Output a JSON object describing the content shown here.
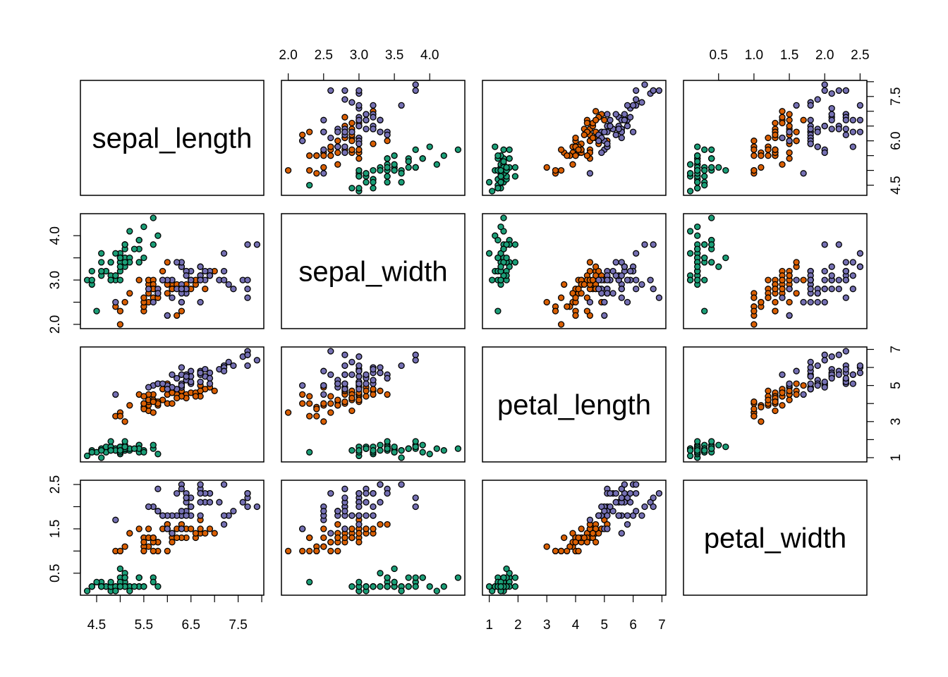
{
  "chart_data": {
    "type": "scatter-matrix",
    "variables": [
      "sepal_length",
      "sepal_width",
      "petal_length",
      "petal_width"
    ],
    "ranges": [
      [
        4.156,
        8.044
      ],
      [
        1.904,
        4.496
      ],
      [
        0.764,
        7.136
      ],
      [
        0.004,
        2.596
      ]
    ],
    "ticks": [
      [
        4.5,
        5.0,
        5.5,
        6.0,
        6.5,
        7.0,
        7.5,
        8.0
      ],
      [
        2.0,
        2.5,
        3.0,
        3.5,
        4.0
      ],
      [
        1,
        2,
        3,
        4,
        5,
        6,
        7
      ],
      [
        0.5,
        1.0,
        1.5,
        2.0,
        2.5
      ]
    ],
    "axis_labels": {
      "bottom": {
        "0": [
          "4.5",
          "5.5",
          "6.5",
          "7.5"
        ],
        "2": [
          "1",
          "2",
          "3",
          "4",
          "5",
          "6",
          "7"
        ]
      },
      "top": {
        "1": [
          "2.0",
          "2.5",
          "3.0",
          "3.5",
          "4.0"
        ],
        "3": [
          "0.5",
          "1.0",
          "1.5",
          "2.0",
          "2.5"
        ]
      },
      "left": {
        "1": [
          "2.0",
          "3.0",
          "4.0"
        ],
        "3": [
          "0.5",
          "1.5",
          "2.5"
        ]
      },
      "right": {
        "0": [
          "4.5",
          "6.0",
          "7.5"
        ],
        "2": [
          "1",
          "3",
          "5",
          "7"
        ]
      }
    },
    "point_border_color": "#000000",
    "groups": [
      {
        "color": "#1B9E77",
        "rows": [
          [
            5.1,
            3.5,
            1.4,
            0.2
          ],
          [
            4.9,
            3.0,
            1.4,
            0.2
          ],
          [
            4.7,
            3.2,
            1.3,
            0.2
          ],
          [
            4.6,
            3.1,
            1.5,
            0.2
          ],
          [
            5.0,
            3.6,
            1.4,
            0.2
          ],
          [
            5.4,
            3.9,
            1.7,
            0.4
          ],
          [
            4.6,
            3.4,
            1.4,
            0.3
          ],
          [
            5.0,
            3.4,
            1.5,
            0.2
          ],
          [
            4.4,
            2.9,
            1.4,
            0.2
          ],
          [
            4.9,
            3.1,
            1.5,
            0.1
          ],
          [
            5.4,
            3.7,
            1.5,
            0.2
          ],
          [
            4.8,
            3.4,
            1.6,
            0.2
          ],
          [
            4.8,
            3.0,
            1.4,
            0.1
          ],
          [
            4.3,
            3.0,
            1.1,
            0.1
          ],
          [
            5.8,
            4.0,
            1.2,
            0.2
          ],
          [
            5.7,
            4.4,
            1.5,
            0.4
          ],
          [
            5.4,
            3.9,
            1.3,
            0.4
          ],
          [
            5.1,
            3.5,
            1.4,
            0.3
          ],
          [
            5.7,
            3.8,
            1.7,
            0.3
          ],
          [
            5.1,
            3.8,
            1.5,
            0.3
          ],
          [
            5.4,
            3.4,
            1.7,
            0.2
          ],
          [
            5.1,
            3.7,
            1.5,
            0.4
          ],
          [
            4.6,
            3.6,
            1.0,
            0.2
          ],
          [
            5.1,
            3.3,
            1.7,
            0.5
          ],
          [
            4.8,
            3.4,
            1.9,
            0.2
          ],
          [
            5.0,
            3.0,
            1.6,
            0.2
          ],
          [
            5.0,
            3.4,
            1.6,
            0.4
          ],
          [
            5.2,
            3.5,
            1.5,
            0.2
          ],
          [
            5.2,
            3.4,
            1.4,
            0.2
          ],
          [
            4.7,
            3.2,
            1.6,
            0.2
          ],
          [
            4.8,
            3.1,
            1.6,
            0.2
          ],
          [
            5.4,
            3.4,
            1.5,
            0.4
          ],
          [
            5.2,
            4.1,
            1.5,
            0.1
          ],
          [
            5.5,
            4.2,
            1.4,
            0.2
          ],
          [
            4.9,
            3.1,
            1.5,
            0.2
          ],
          [
            5.0,
            3.2,
            1.2,
            0.2
          ],
          [
            5.5,
            3.5,
            1.3,
            0.2
          ],
          [
            4.9,
            3.6,
            1.4,
            0.1
          ],
          [
            4.4,
            3.0,
            1.3,
            0.2
          ],
          [
            5.1,
            3.4,
            1.5,
            0.2
          ],
          [
            5.0,
            3.5,
            1.3,
            0.3
          ],
          [
            4.5,
            2.3,
            1.3,
            0.3
          ],
          [
            4.4,
            3.2,
            1.3,
            0.2
          ],
          [
            5.0,
            3.5,
            1.6,
            0.6
          ],
          [
            5.1,
            3.8,
            1.9,
            0.4
          ],
          [
            4.8,
            3.0,
            1.4,
            0.3
          ],
          [
            5.1,
            3.8,
            1.6,
            0.2
          ],
          [
            4.6,
            3.2,
            1.4,
            0.2
          ],
          [
            5.3,
            3.7,
            1.5,
            0.2
          ],
          [
            5.0,
            3.3,
            1.4,
            0.2
          ]
        ]
      },
      {
        "color": "#D95F02",
        "rows": [
          [
            7.0,
            3.2,
            4.7,
            1.4
          ],
          [
            6.4,
            3.2,
            4.5,
            1.5
          ],
          [
            6.9,
            3.1,
            4.9,
            1.5
          ],
          [
            5.5,
            2.3,
            4.0,
            1.3
          ],
          [
            6.5,
            2.8,
            4.6,
            1.5
          ],
          [
            5.7,
            2.8,
            4.5,
            1.3
          ],
          [
            6.3,
            3.3,
            4.7,
            1.6
          ],
          [
            4.9,
            2.4,
            3.3,
            1.0
          ],
          [
            6.6,
            2.9,
            4.6,
            1.3
          ],
          [
            5.2,
            2.7,
            3.9,
            1.4
          ],
          [
            5.0,
            2.0,
            3.5,
            1.0
          ],
          [
            5.9,
            3.0,
            4.2,
            1.5
          ],
          [
            6.0,
            2.2,
            4.0,
            1.0
          ],
          [
            6.1,
            2.9,
            4.7,
            1.4
          ],
          [
            5.6,
            2.9,
            3.6,
            1.3
          ],
          [
            6.7,
            3.1,
            4.4,
            1.4
          ],
          [
            5.6,
            3.0,
            4.5,
            1.5
          ],
          [
            5.8,
            2.7,
            4.1,
            1.0
          ],
          [
            6.2,
            2.2,
            4.5,
            1.5
          ],
          [
            5.6,
            2.5,
            3.9,
            1.1
          ],
          [
            5.9,
            3.2,
            4.8,
            1.8
          ],
          [
            6.1,
            2.8,
            4.0,
            1.3
          ],
          [
            6.3,
            2.5,
            4.9,
            1.5
          ],
          [
            6.1,
            2.8,
            4.7,
            1.2
          ],
          [
            6.4,
            2.9,
            4.3,
            1.3
          ],
          [
            6.6,
            3.0,
            4.4,
            1.4
          ],
          [
            6.8,
            2.8,
            4.8,
            1.4
          ],
          [
            6.7,
            3.0,
            5.0,
            1.7
          ],
          [
            6.0,
            2.9,
            4.5,
            1.5
          ],
          [
            5.7,
            2.6,
            3.5,
            1.0
          ],
          [
            5.5,
            2.4,
            3.8,
            1.1
          ],
          [
            5.5,
            2.4,
            3.7,
            1.0
          ],
          [
            5.8,
            2.7,
            3.9,
            1.2
          ],
          [
            6.0,
            2.7,
            5.1,
            1.6
          ],
          [
            5.4,
            3.0,
            4.5,
            1.5
          ],
          [
            6.0,
            3.4,
            4.5,
            1.6
          ],
          [
            6.7,
            3.1,
            4.7,
            1.5
          ],
          [
            6.3,
            2.3,
            4.4,
            1.3
          ],
          [
            5.6,
            3.0,
            4.1,
            1.3
          ],
          [
            5.5,
            2.5,
            4.0,
            1.3
          ],
          [
            5.5,
            2.6,
            4.4,
            1.2
          ],
          [
            6.1,
            3.0,
            4.6,
            1.4
          ],
          [
            5.8,
            2.6,
            4.0,
            1.2
          ],
          [
            5.0,
            2.3,
            3.3,
            1.0
          ],
          [
            5.6,
            2.7,
            4.2,
            1.3
          ],
          [
            5.7,
            3.0,
            4.2,
            1.2
          ],
          [
            5.7,
            2.9,
            4.2,
            1.3
          ],
          [
            6.2,
            2.9,
            4.3,
            1.3
          ],
          [
            5.1,
            2.5,
            3.0,
            1.1
          ],
          [
            5.7,
            2.8,
            4.1,
            1.3
          ]
        ]
      },
      {
        "color": "#7570B3",
        "rows": [
          [
            6.3,
            3.3,
            6.0,
            2.5
          ],
          [
            5.8,
            2.7,
            5.1,
            1.9
          ],
          [
            7.1,
            3.0,
            5.9,
            2.1
          ],
          [
            6.3,
            2.9,
            5.6,
            1.8
          ],
          [
            6.5,
            3.0,
            5.8,
            2.2
          ],
          [
            7.6,
            3.0,
            6.6,
            2.1
          ],
          [
            4.9,
            2.5,
            4.5,
            1.7
          ],
          [
            7.3,
            2.9,
            6.3,
            1.8
          ],
          [
            6.7,
            2.5,
            5.8,
            1.8
          ],
          [
            7.2,
            3.6,
            6.1,
            2.5
          ],
          [
            6.5,
            3.2,
            5.1,
            2.0
          ],
          [
            6.4,
            2.7,
            5.3,
            1.9
          ],
          [
            6.8,
            3.0,
            5.5,
            2.1
          ],
          [
            5.7,
            2.5,
            5.0,
            2.0
          ],
          [
            5.8,
            2.8,
            5.1,
            2.4
          ],
          [
            6.4,
            3.2,
            5.3,
            2.3
          ],
          [
            6.5,
            3.0,
            5.5,
            1.8
          ],
          [
            7.7,
            3.8,
            6.7,
            2.2
          ],
          [
            7.7,
            2.6,
            6.9,
            2.3
          ],
          [
            6.0,
            2.2,
            5.0,
            1.5
          ],
          [
            6.9,
            3.2,
            5.7,
            2.3
          ],
          [
            5.6,
            2.8,
            4.9,
            2.0
          ],
          [
            7.7,
            2.8,
            6.7,
            2.0
          ],
          [
            6.3,
            2.7,
            4.9,
            1.8
          ],
          [
            6.7,
            3.3,
            5.7,
            2.1
          ],
          [
            7.2,
            3.2,
            6.0,
            1.8
          ],
          [
            6.2,
            2.8,
            4.8,
            1.8
          ],
          [
            6.1,
            3.0,
            4.9,
            1.8
          ],
          [
            6.4,
            2.8,
            5.6,
            2.1
          ],
          [
            7.2,
            3.0,
            5.8,
            1.6
          ],
          [
            7.4,
            2.8,
            6.1,
            1.9
          ],
          [
            7.9,
            3.8,
            6.4,
            2.0
          ],
          [
            6.4,
            2.8,
            5.6,
            2.2
          ],
          [
            6.3,
            2.8,
            5.1,
            1.5
          ],
          [
            6.1,
            2.6,
            5.6,
            1.4
          ],
          [
            7.7,
            3.0,
            6.1,
            2.3
          ],
          [
            6.3,
            3.4,
            5.6,
            2.4
          ],
          [
            6.4,
            3.1,
            5.5,
            1.8
          ],
          [
            6.0,
            3.0,
            4.8,
            1.8
          ],
          [
            6.9,
            3.1,
            5.4,
            2.1
          ],
          [
            6.7,
            3.1,
            5.6,
            2.4
          ],
          [
            6.9,
            3.1,
            5.1,
            2.3
          ],
          [
            5.8,
            2.7,
            5.1,
            1.9
          ],
          [
            6.8,
            3.2,
            5.9,
            2.3
          ],
          [
            6.7,
            3.3,
            5.7,
            2.5
          ],
          [
            6.7,
            3.0,
            5.2,
            2.3
          ],
          [
            6.3,
            2.5,
            5.0,
            1.9
          ],
          [
            6.5,
            3.0,
            5.2,
            2.0
          ],
          [
            6.2,
            3.4,
            5.4,
            2.3
          ],
          [
            5.9,
            3.0,
            5.1,
            1.8
          ]
        ]
      }
    ]
  }
}
